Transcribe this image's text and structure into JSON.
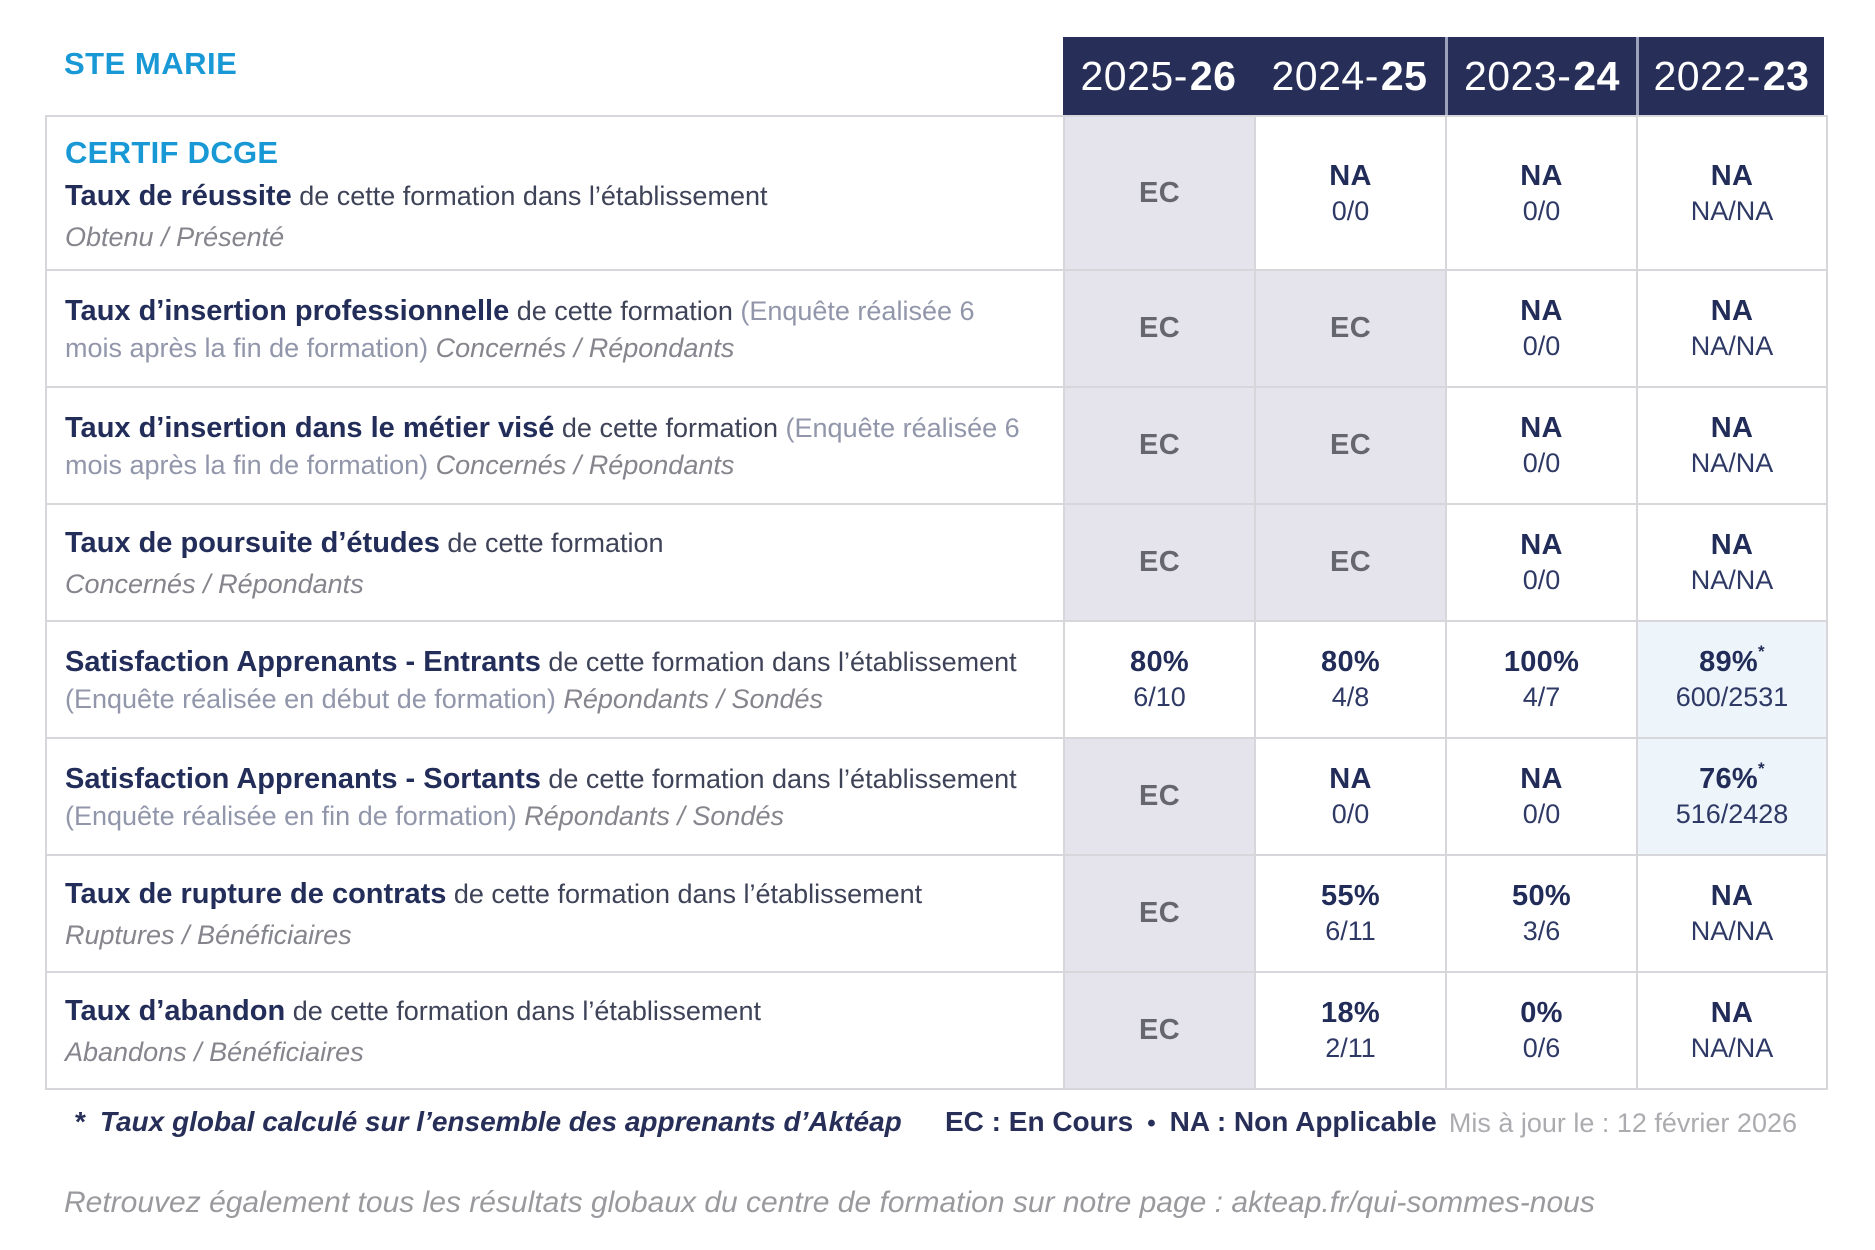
{
  "school": "STE MARIE",
  "header": {
    "columns": [
      {
        "prefix": "2025-",
        "bold": "26"
      },
      {
        "prefix": "2024-",
        "bold": "25"
      },
      {
        "prefix": "2023-",
        "bold": "24"
      },
      {
        "prefix": "2022-",
        "bold": "23"
      }
    ]
  },
  "rows": [
    {
      "category": "CERTIF DCGE",
      "title": "Taux de réussite",
      "desc": " de cette formation dans l’établissement",
      "paren": "",
      "sub": "Obtenu / Présenté",
      "sub_block": true,
      "cells": [
        {
          "main": "EC",
          "type": "ec"
        },
        {
          "main": "NA",
          "sub": "0/0"
        },
        {
          "main": "NA",
          "sub": "0/0"
        },
        {
          "main": "NA",
          "sub": "NA/NA"
        }
      ]
    },
    {
      "title": "Taux d’insertion professionnelle",
      "desc": " de cette formation ",
      "paren": "(Enquête réalisée 6 mois après la fin de formation) ",
      "sub": "Concernés / Répondants",
      "sub_block": false,
      "cells": [
        {
          "main": "EC",
          "type": "ec"
        },
        {
          "main": "EC",
          "type": "ec"
        },
        {
          "main": "NA",
          "sub": "0/0"
        },
        {
          "main": "NA",
          "sub": "NA/NA"
        }
      ]
    },
    {
      "title": "Taux d’insertion dans le métier visé",
      "desc": " de cette formation ",
      "paren": "(Enquête réalisée 6 mois après la fin de formation) ",
      "sub": "Concernés / Répondants",
      "sub_block": false,
      "cells": [
        {
          "main": "EC",
          "type": "ec"
        },
        {
          "main": "EC",
          "type": "ec"
        },
        {
          "main": "NA",
          "sub": "0/0"
        },
        {
          "main": "NA",
          "sub": "NA/NA"
        }
      ]
    },
    {
      "title": "Taux de poursuite d’études",
      "desc": " de cette formation",
      "paren": "",
      "sub": "Concernés / Répondants",
      "sub_block": true,
      "cells": [
        {
          "main": "EC",
          "type": "ec"
        },
        {
          "main": "EC",
          "type": "ec"
        },
        {
          "main": "NA",
          "sub": "0/0"
        },
        {
          "main": "NA",
          "sub": "NA/NA"
        }
      ]
    },
    {
      "title": "Satisfaction Apprenants - Entrants",
      "desc": " de cette formation dans l’établissement ",
      "paren": "(Enquête réalisée en début de formation) ",
      "sub": "Répondants / Sondés",
      "sub_block": false,
      "cells": [
        {
          "main": "80%",
          "sub": "6/10"
        },
        {
          "main": "80%",
          "sub": "4/8"
        },
        {
          "main": "100%",
          "sub": "4/7"
        },
        {
          "main": "89%",
          "star": "*",
          "sub": "600/2531",
          "type": "blue"
        }
      ]
    },
    {
      "title": "Satisfaction Apprenants - Sortants",
      "desc": " de cette formation dans l’établissement ",
      "paren": "(Enquête réalisée en fin de formation) ",
      "sub": "Répondants / Sondés",
      "sub_block": false,
      "cells": [
        {
          "main": "EC",
          "type": "ec"
        },
        {
          "main": "NA",
          "sub": "0/0"
        },
        {
          "main": "NA",
          "sub": "0/0"
        },
        {
          "main": "76%",
          "star": "*",
          "sub": "516/2428",
          "type": "blue"
        }
      ]
    },
    {
      "title": "Taux de rupture de contrats",
      "desc": " de cette formation dans l’établissement",
      "paren": "",
      "sub": "Ruptures / Bénéficiaires",
      "sub_block": true,
      "cells": [
        {
          "main": "EC",
          "type": "ec"
        },
        {
          "main": "55%",
          "sub": "6/11"
        },
        {
          "main": "50%",
          "sub": "3/6"
        },
        {
          "main": "NA",
          "sub": "NA/NA"
        }
      ]
    },
    {
      "title": "Taux d’abandon",
      "desc": " de cette formation dans l’établissement",
      "paren": "",
      "sub": "Abandons / Bénéficiaires",
      "sub_block": true,
      "cells": [
        {
          "main": "EC",
          "type": "ec"
        },
        {
          "main": "18%",
          "sub": "2/11"
        },
        {
          "main": "0%",
          "sub": "0/6"
        },
        {
          "main": "NA",
          "sub": "NA/NA"
        }
      ]
    }
  ],
  "footer": {
    "star": "*",
    "note": "Taux global calculé sur l’ensemble des apprenants d’Aktéap",
    "legend_ec": "EC : En Cours",
    "bullet": "•",
    "legend_na": "NA : Non Applicable",
    "updated": "Mis à jour le : 12 février 2026",
    "more": "Retrouvez également tous les résultats globaux du centre de formation sur notre page : akteap.fr/qui-sommes-nous"
  },
  "colors": {
    "header_navy": "#272F58",
    "accent_blue": "#1899D6",
    "cell_gray": "#E5E4ED",
    "cell_blue": "#EDF4FA"
  }
}
